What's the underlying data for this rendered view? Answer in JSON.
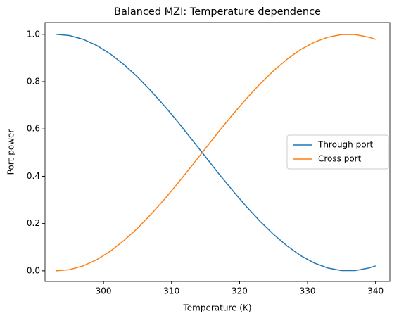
{
  "chart_data": {
    "type": "line",
    "title": "Balanced MZI: Temperature dependence",
    "x_label": "Temperature (K)",
    "y_label": "Port power",
    "x": [
      293,
      295,
      297,
      299,
      301,
      303,
      305,
      307,
      309,
      311,
      313,
      315,
      317,
      319,
      321,
      323,
      325,
      327,
      329,
      331,
      333,
      335,
      337,
      339,
      340
    ],
    "series": [
      {
        "name": "Through port",
        "color": "#1f77b4",
        "values": [
          1.0,
          0.995,
          0.979,
          0.953,
          0.917,
          0.872,
          0.82,
          0.76,
          0.696,
          0.627,
          0.555,
          0.482,
          0.409,
          0.339,
          0.272,
          0.21,
          0.154,
          0.105,
          0.064,
          0.033,
          0.012,
          0.001,
          0.001,
          0.012,
          0.021
        ]
      },
      {
        "name": "Cross port",
        "color": "#ff7f0e",
        "values": [
          0.0,
          0.005,
          0.021,
          0.047,
          0.083,
          0.128,
          0.18,
          0.24,
          0.304,
          0.373,
          0.445,
          0.518,
          0.591,
          0.661,
          0.728,
          0.79,
          0.846,
          0.895,
          0.936,
          0.967,
          0.988,
          0.999,
          0.999,
          0.988,
          0.979
        ]
      }
    ],
    "xlim": [
      291.4,
      342.1
    ],
    "xticks": [
      300,
      310,
      320,
      330,
      340
    ],
    "ylim": [
      -0.045,
      1.05
    ],
    "yticks": [
      {
        "value": 0,
        "label": "0.0"
      },
      0.2,
      0.4,
      0.6,
      0.8,
      {
        "value": 1,
        "label": "1.0"
      }
    ],
    "legend": "center right"
  }
}
